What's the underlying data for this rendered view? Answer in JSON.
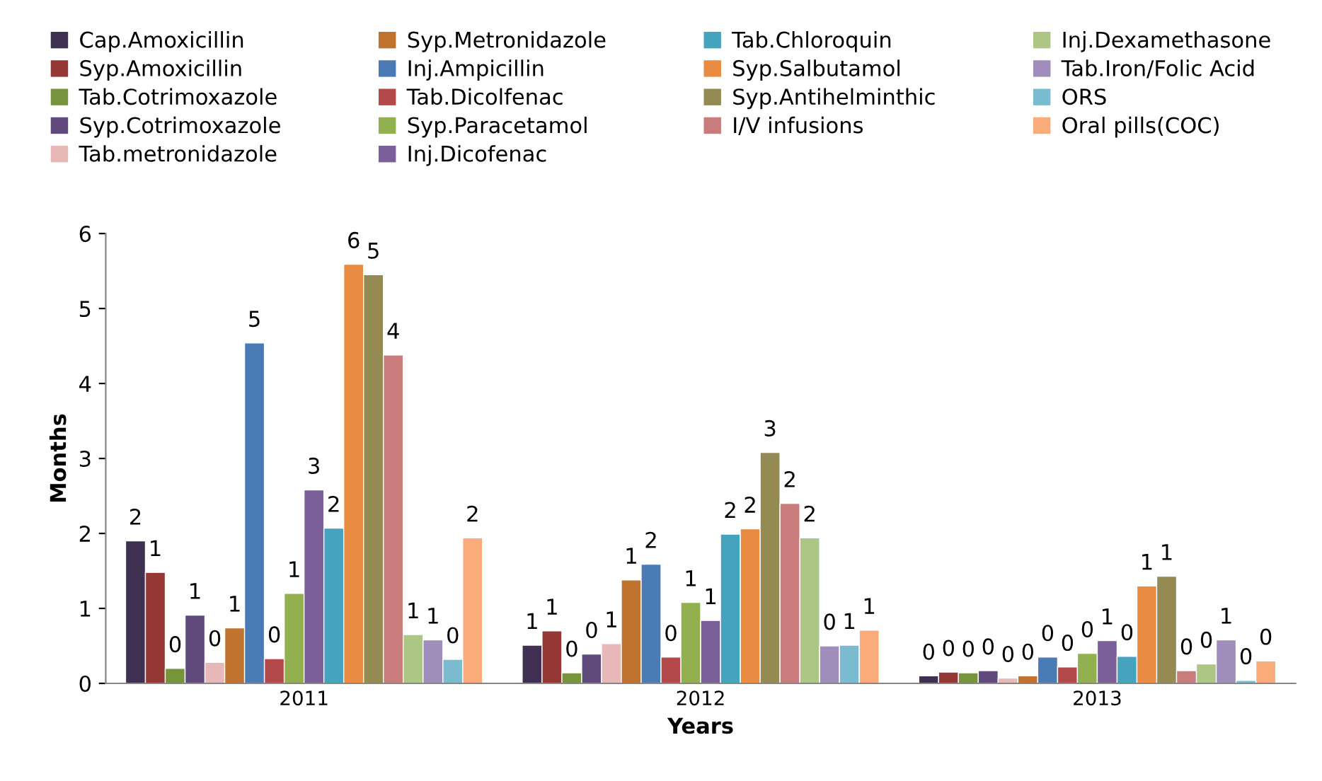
{
  "chart_data": {
    "type": "bar",
    "xlabel": "Years",
    "ylabel": "Months",
    "categories": [
      "2011",
      "2012",
      "2013"
    ],
    "ylim": [
      0,
      6
    ],
    "yticks": [
      0,
      1,
      2,
      3,
      4,
      5,
      6
    ],
    "grid": false,
    "legend": "top",
    "series": [
      {
        "name": "Cap.Amoxicillin",
        "color": "#403152",
        "values": [
          1.9,
          0.51,
          0.1
        ],
        "value_labels": [
          "2",
          "1",
          "0"
        ]
      },
      {
        "name": "Syp.Amoxicillin",
        "color": "#953735",
        "values": [
          1.48,
          0.7,
          0.15
        ],
        "value_labels": [
          "1",
          "1",
          "0"
        ]
      },
      {
        "name": "Tab.Cotrimoxazole",
        "color": "#77933c",
        "values": [
          0.2,
          0.14,
          0.14
        ],
        "value_labels": [
          "0",
          "0",
          "0"
        ]
      },
      {
        "name": "Syp.Cotrimoxazole",
        "color": "#604a7b",
        "values": [
          0.91,
          0.39,
          0.17
        ],
        "value_labels": [
          "1",
          "0",
          "0"
        ]
      },
      {
        "name": "Tab.metronidazole",
        "color": "#e6b9b8",
        "values": [
          0.28,
          0.53,
          0.07
        ],
        "value_labels": [
          "0",
          "1",
          "0"
        ]
      },
      {
        "name": "Syp.Metronidazole",
        "color": "#c0722f",
        "values": [
          0.74,
          1.38,
          0.1
        ],
        "value_labels": [
          "1",
          "1",
          "0"
        ]
      },
      {
        "name": "Inj.Ampicillin",
        "color": "#4a7bb5",
        "values": [
          4.54,
          1.59,
          0.35
        ],
        "value_labels": [
          "5",
          "2",
          "0"
        ]
      },
      {
        "name": "Tab.Dicolfenac",
        "color": "#b3494a",
        "values": [
          0.33,
          0.35,
          0.22
        ],
        "value_labels": [
          "0",
          "0",
          "0"
        ]
      },
      {
        "name": "Syp.Paracetamol",
        "color": "#93b050",
        "values": [
          1.2,
          1.08,
          0.4
        ],
        "value_labels": [
          "1",
          "1",
          "0"
        ]
      },
      {
        "name": "Inj.Dicofenac",
        "color": "#7a5f99",
        "values": [
          2.58,
          0.84,
          0.57
        ],
        "value_labels": [
          "3",
          "1",
          "1"
        ]
      },
      {
        "name": "Tab.Chloroquin",
        "color": "#46a3be",
        "values": [
          2.07,
          1.99,
          0.36
        ],
        "value_labels": [
          "2",
          "2",
          "0"
        ]
      },
      {
        "name": "Syp.Salbutamol",
        "color": "#e98b41",
        "values": [
          5.59,
          2.06,
          1.3
        ],
        "value_labels": [
          "6",
          "2",
          "1"
        ]
      },
      {
        "name": "Syp.Antihelminthic",
        "color": "#948a54",
        "values": [
          5.45,
          3.08,
          1.43
        ],
        "value_labels": [
          "5",
          "3",
          "1"
        ]
      },
      {
        "name": "I/V infusions",
        "color": "#c97c7c",
        "values": [
          4.38,
          2.4,
          0.17
        ],
        "value_labels": [
          "4",
          "2",
          "0"
        ]
      },
      {
        "name": "Inj.Dexamethasone",
        "color": "#adc585",
        "values": [
          0.65,
          1.94,
          0.26
        ],
        "value_labels": [
          "1",
          "2",
          "0"
        ]
      },
      {
        "name": "Tab.Iron/Folic Acid",
        "color": "#a08dbc",
        "values": [
          0.58,
          0.5,
          0.58
        ],
        "value_labels": [
          "1",
          "0",
          "1"
        ]
      },
      {
        "name": "ORS",
        "color": "#7bbbcf",
        "values": [
          0.32,
          0.51,
          0.04
        ],
        "value_labels": [
          "0",
          "1",
          "0"
        ]
      },
      {
        "name": "Oral pills(COC)",
        "color": "#f9ac79",
        "values": [
          1.94,
          0.71,
          0.3
        ],
        "value_labels": [
          "2",
          "1",
          "0"
        ]
      }
    ]
  }
}
